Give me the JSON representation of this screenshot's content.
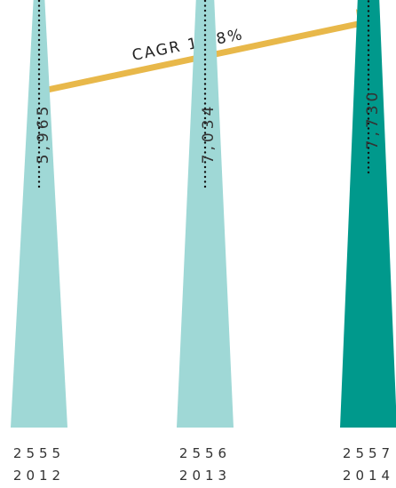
{
  "chart_data": {
    "type": "bar",
    "mark_shape": "triangle",
    "categories": [
      "2555",
      "2556",
      "2557"
    ],
    "category_sublabels": [
      "2012",
      "2013",
      "2014"
    ],
    "values": [
      5965,
      7034,
      7730
    ],
    "value_labels": [
      "5,965",
      "7,034",
      "7,730"
    ],
    "colors": [
      "#9fd8d6",
      "#9fd8d6",
      "#00998c"
    ],
    "annotation": {
      "text": "CAGR 13.8%",
      "arrow_color": "#e8b84a"
    },
    "title": "",
    "xlabel": "",
    "ylabel": "",
    "grid": false,
    "legend": "none"
  }
}
